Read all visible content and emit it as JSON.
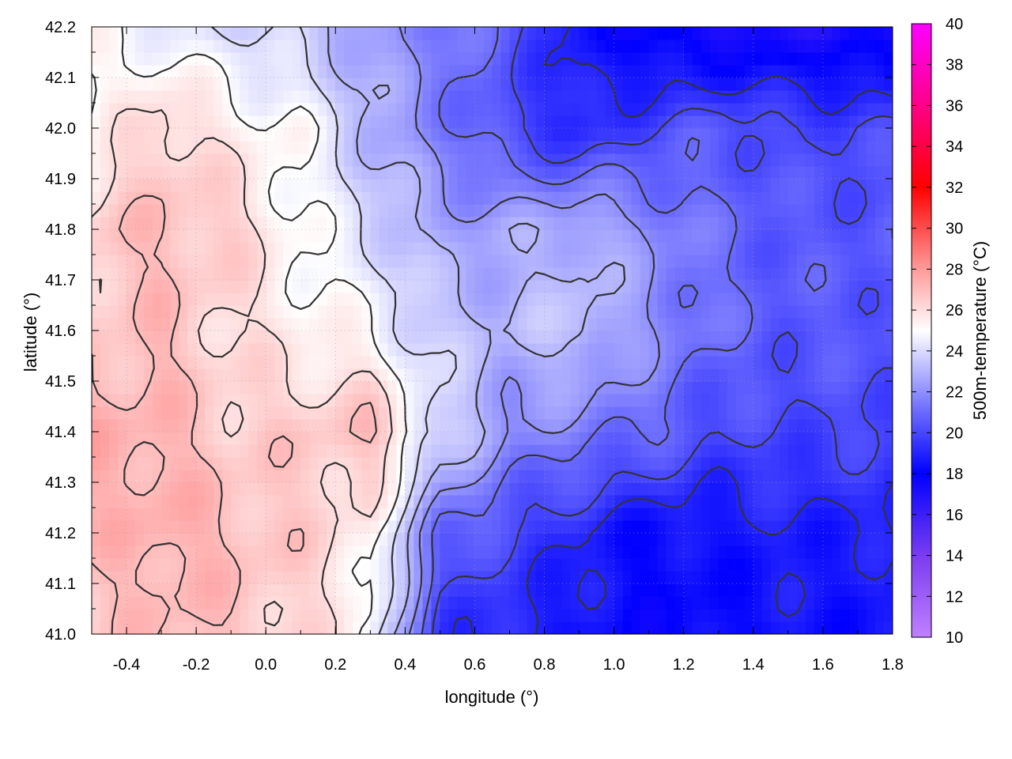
{
  "chart_data": {
    "type": "heatmap",
    "title": "",
    "xlabel": "longitude (°)",
    "ylabel": "latitude (°)",
    "colorbar_label": "500m-temperature (°C)",
    "xlim": [
      -0.5,
      1.8
    ],
    "ylim": [
      41.0,
      42.2
    ],
    "x_ticks": [
      "-0.4",
      "-0.2",
      "0.0",
      "0.2",
      "0.4",
      "0.6",
      "0.8",
      "1.0",
      "1.2",
      "1.4",
      "1.6",
      "1.8"
    ],
    "y_ticks": [
      "41.0",
      "41.1",
      "41.2",
      "41.3",
      "41.4",
      "41.5",
      "41.6",
      "41.7",
      "41.8",
      "41.9",
      "42.0",
      "42.1",
      "42.2"
    ],
    "colorbar_range": [
      10,
      40
    ],
    "colorbar_ticks": [
      "10",
      "12",
      "14",
      "16",
      "18",
      "20",
      "22",
      "24",
      "26",
      "28",
      "30",
      "32",
      "34",
      "36",
      "38",
      "40"
    ],
    "colormap": [
      {
        "value": 10,
        "color": "#c080ff"
      },
      {
        "value": 14,
        "color": "#7a3cf0"
      },
      {
        "value": 18,
        "color": "#0000ff"
      },
      {
        "value": 21,
        "color": "#6a6aff"
      },
      {
        "value": 25,
        "color": "#ffffff"
      },
      {
        "value": 28,
        "color": "#ff9a9a"
      },
      {
        "value": 32,
        "color": "#ff0000"
      },
      {
        "value": 36,
        "color": "#ff0088"
      },
      {
        "value": 40,
        "color": "#ff00ff"
      }
    ],
    "grid": true,
    "contour_color": "#333333",
    "field": {
      "lon": [
        -0.5,
        -0.3,
        -0.1,
        0.1,
        0.3,
        0.5,
        0.7,
        0.9,
        1.1,
        1.3,
        1.5,
        1.8
      ],
      "lat": [
        41.0,
        41.2,
        41.4,
        41.6,
        41.8,
        42.0,
        42.2
      ],
      "temperature": [
        [
          26.5,
          27.0,
          26.8,
          26.2,
          25.0,
          19.5,
          19.0,
          18.5,
          18.0,
          18.2,
          18.5,
          18.5
        ],
        [
          27.0,
          27.5,
          27.0,
          26.5,
          25.5,
          21.0,
          20.0,
          19.0,
          18.2,
          18.5,
          18.8,
          18.8
        ],
        [
          27.5,
          27.2,
          26.5,
          26.5,
          27.0,
          24.0,
          22.0,
          21.5,
          21.0,
          20.0,
          20.0,
          20.0
        ],
        [
          26.5,
          27.0,
          26.0,
          25.5,
          25.0,
          23.5,
          23.0,
          23.5,
          22.0,
          21.0,
          20.5,
          20.5
        ],
        [
          26.5,
          27.0,
          26.5,
          25.0,
          24.0,
          22.5,
          22.5,
          23.0,
          22.0,
          21.0,
          20.5,
          20.5
        ],
        [
          25.0,
          26.5,
          25.5,
          25.0,
          23.0,
          21.5,
          20.0,
          19.0,
          20.0,
          20.5,
          20.0,
          20.0
        ],
        [
          25.0,
          24.5,
          24.0,
          23.5,
          22.5,
          21.5,
          20.5,
          18.5,
          17.5,
          17.0,
          17.0,
          17.0
        ]
      ]
    }
  }
}
